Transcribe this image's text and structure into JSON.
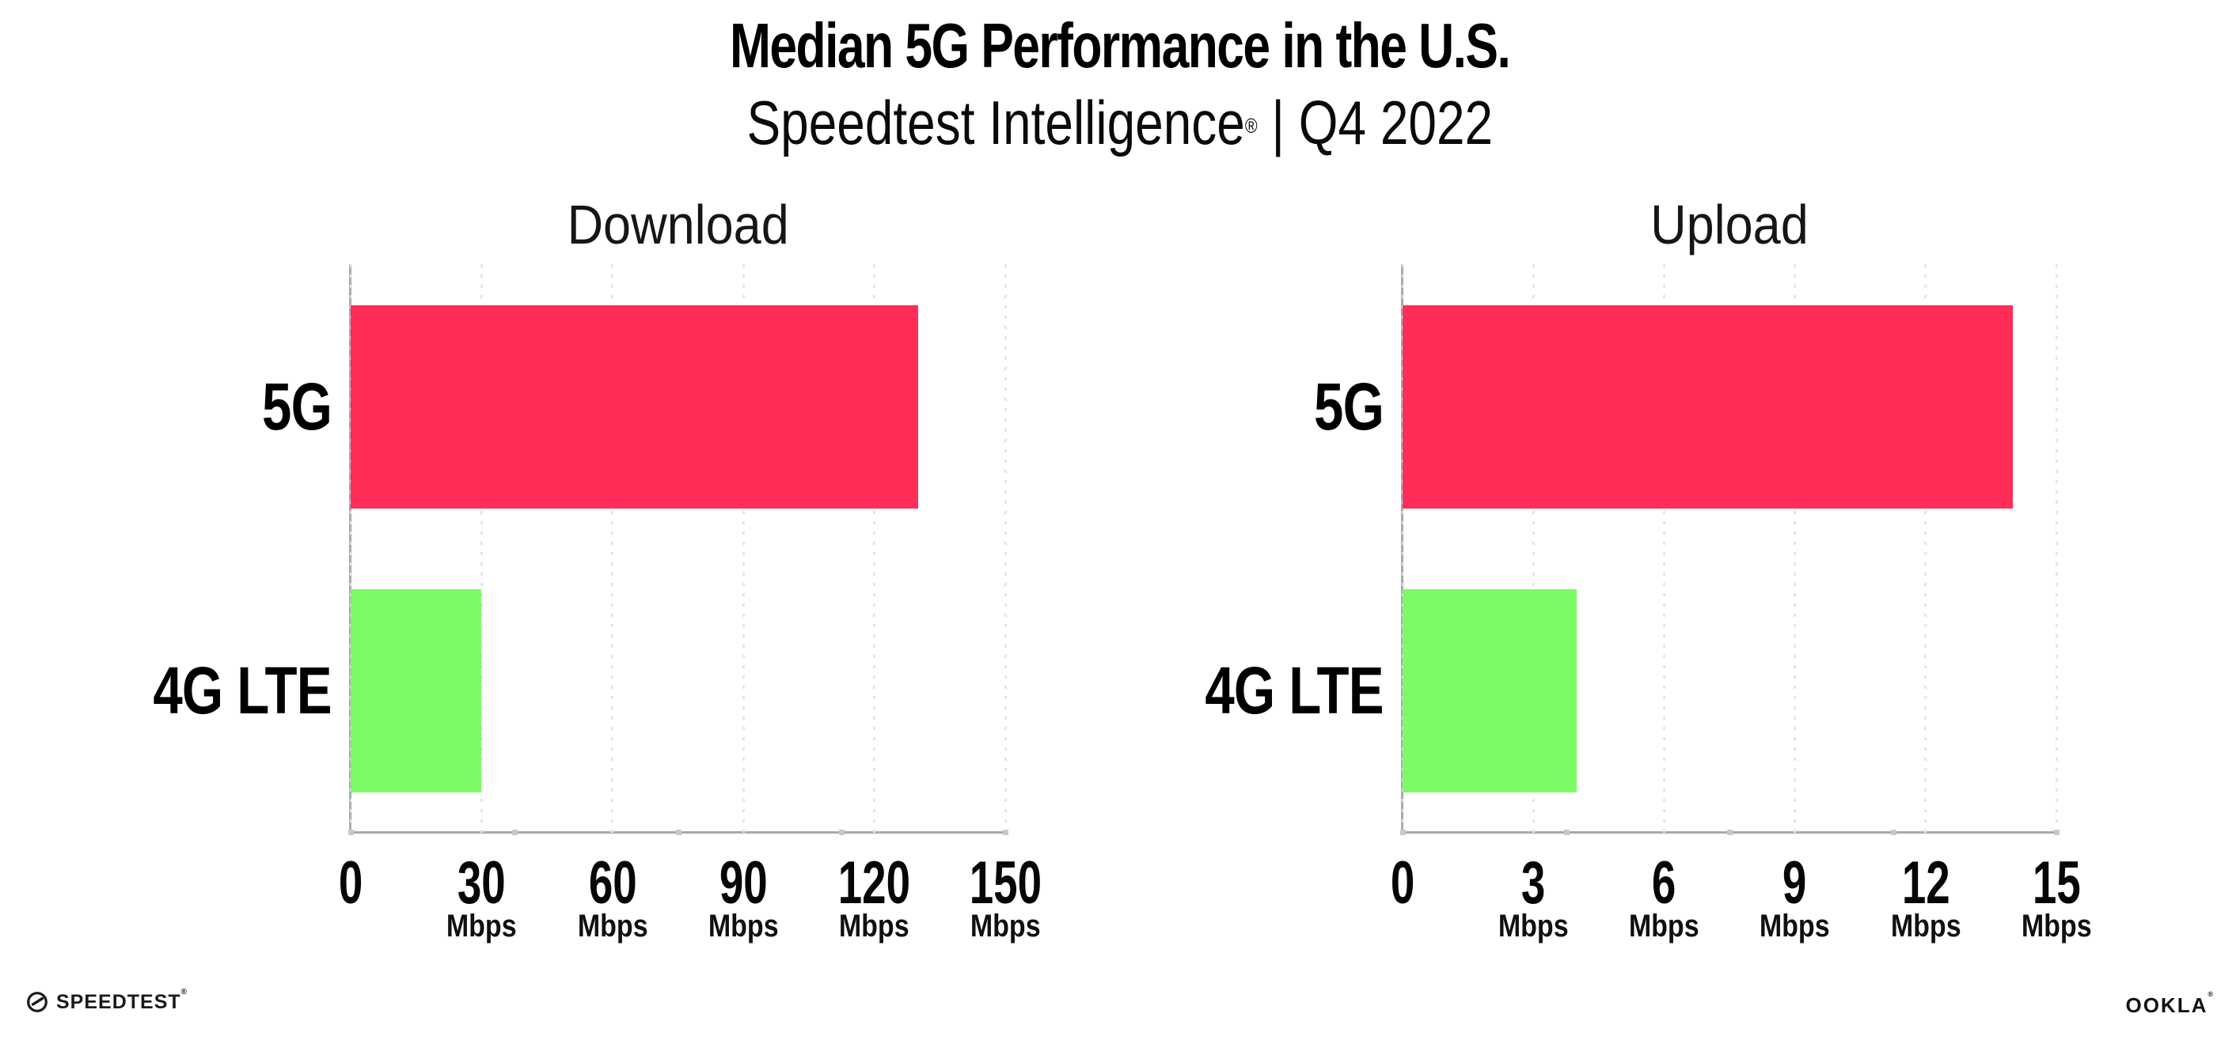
{
  "header": {
    "title": "Median 5G Performance in the U.S.",
    "subtitle_brand": "Speedtest Intelligence",
    "subtitle_mark": "®",
    "subtitle_rest": " | Q4 2022"
  },
  "colors": {
    "bar_5g": "#FF2D58",
    "bar_4g_lte": "#7FFA67",
    "axis": "#A9A9B1",
    "gridline": "#E4E4EE",
    "text": "#000000"
  },
  "chart_data": [
    {
      "type": "bar",
      "orientation": "horizontal",
      "title": "Download",
      "categories": [
        "5G",
        "4G LTE"
      ],
      "values": [
        130,
        30
      ],
      "unit": "Mbps",
      "xlim": [
        0,
        150
      ],
      "xticks": [
        0,
        30,
        60,
        90,
        120,
        150
      ],
      "bar_colors": [
        "#FF2D58",
        "#7FFA67"
      ],
      "grid": "dotted-vertical",
      "legend": "none"
    },
    {
      "type": "bar",
      "orientation": "horizontal",
      "title": "Upload",
      "categories": [
        "5G",
        "4G LTE"
      ],
      "values": [
        14,
        4
      ],
      "unit": "Mbps",
      "xlim": [
        0,
        15
      ],
      "xticks": [
        0,
        3,
        6,
        9,
        12,
        15
      ],
      "bar_colors": [
        "#FF2D58",
        "#7FFA67"
      ],
      "grid": "dotted-vertical",
      "legend": "none"
    }
  ],
  "footer": {
    "speedtest_label": "SPEEDTEST",
    "speedtest_mark": "®",
    "speedtest_icon": "gauge-icon",
    "ookla_label": "OOKLA",
    "ookla_mark": "®"
  }
}
